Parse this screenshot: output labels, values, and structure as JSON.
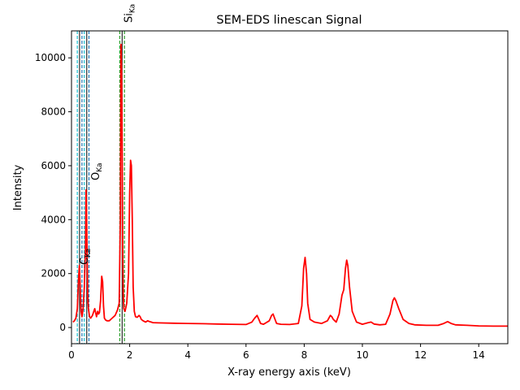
{
  "chart_data": {
    "type": "line",
    "title": "SEM-EDS linescan Signal",
    "xlabel": "X-ray energy axis (keV)",
    "ylabel": "Intensity",
    "xlim": [
      0,
      15
    ],
    "ylim": [
      -600,
      11000
    ],
    "xticks": [
      0,
      2,
      4,
      6,
      8,
      10,
      12,
      14
    ],
    "yticks": [
      0,
      2000,
      4000,
      6000,
      8000,
      10000
    ],
    "grid": false,
    "colors": {
      "spectrum": "#ff0000",
      "line_marker": "#000000",
      "c_bands": "#1f77b4",
      "o_bands": "#17becf",
      "si_bands": "#2ca02c"
    },
    "series": [
      {
        "x": [
          0.05,
          0.1,
          0.15,
          0.2,
          0.24,
          0.27,
          0.3,
          0.33,
          0.36,
          0.4,
          0.44,
          0.48,
          0.5,
          0.52,
          0.54,
          0.56,
          0.58,
          0.62,
          0.66,
          0.72,
          0.8,
          0.86,
          0.9,
          0.93,
          0.96,
          1.0,
          1.04,
          1.07,
          1.1,
          1.13,
          1.17,
          1.22,
          1.3,
          1.4,
          1.5,
          1.58,
          1.64,
          1.68,
          1.7,
          1.72,
          1.74,
          1.76,
          1.78,
          1.8,
          1.84,
          1.9,
          1.96,
          2.0,
          2.03,
          2.06,
          2.09,
          2.12,
          2.16,
          2.2,
          2.26,
          2.32,
          2.36,
          2.4,
          2.46,
          2.55,
          2.62,
          2.68,
          2.74,
          2.8,
          3.0,
          3.5,
          4.0,
          4.5,
          5.0,
          5.5,
          6.0,
          6.2,
          6.3,
          6.38,
          6.44,
          6.5,
          6.6,
          6.8,
          6.88,
          6.93,
          6.98,
          7.05,
          7.2,
          7.5,
          7.8,
          7.92,
          7.98,
          8.03,
          8.08,
          8.12,
          8.2,
          8.35,
          8.6,
          8.8,
          8.9,
          8.95,
          9.0,
          9.1,
          9.2,
          9.3,
          9.36,
          9.42,
          9.46,
          9.5,
          9.56,
          9.65,
          9.8,
          10.0,
          10.2,
          10.3,
          10.4,
          10.6,
          10.8,
          10.95,
          11.05,
          11.1,
          11.15,
          11.25,
          11.4,
          11.6,
          11.8,
          12.2,
          12.6,
          12.8,
          12.93,
          13.05,
          13.2,
          13.6,
          14.0,
          14.5,
          15.0
        ],
        "y": [
          200,
          250,
          350,
          700,
          1800,
          2300,
          1500,
          600,
          400,
          700,
          1500,
          3000,
          5100,
          4200,
          2500,
          1200,
          700,
          400,
          350,
          450,
          700,
          400,
          600,
          500,
          550,
          1000,
          1900,
          1700,
          800,
          350,
          280,
          250,
          250,
          350,
          450,
          650,
          900,
          4000,
          10500,
          9500,
          7000,
          3000,
          1200,
          700,
          600,
          900,
          2000,
          5000,
          6200,
          6000,
          4000,
          1500,
          600,
          400,
          380,
          450,
          400,
          300,
          250,
          200,
          250,
          220,
          200,
          180,
          170,
          160,
          150,
          140,
          130,
          120,
          110,
          200,
          350,
          450,
          300,
          150,
          120,
          250,
          450,
          500,
          350,
          150,
          120,
          110,
          150,
          800,
          2200,
          2600,
          2000,
          900,
          300,
          200,
          150,
          250,
          450,
          400,
          300,
          200,
          500,
          1200,
          1400,
          2200,
          2500,
          2300,
          1500,
          600,
          200,
          120,
          180,
          200,
          130,
          100,
          120,
          500,
          1000,
          1100,
          1000,
          700,
          300,
          150,
          100,
          80,
          80,
          150,
          220,
          150,
          100,
          80,
          60,
          50,
          50
        ]
      }
    ],
    "element_lines": [
      {
        "label": "C",
        "subscript": "Ka",
        "energy": 0.277,
        "band_energies": [
          0.2,
          0.36
        ]
      },
      {
        "label": "O",
        "subscript": "Ka",
        "energy": 0.525,
        "band_energies": [
          0.44,
          0.6
        ]
      },
      {
        "label": "Si",
        "subscript": "Ka",
        "energy": 1.74,
        "band_energies": [
          1.66,
          1.82
        ]
      }
    ]
  }
}
